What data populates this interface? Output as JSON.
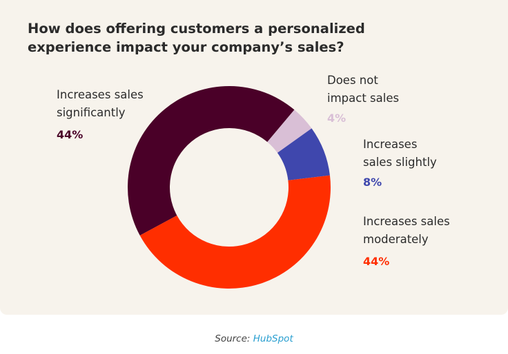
{
  "chart_data": {
    "type": "pie",
    "donut": true,
    "title": "How does offering customers a personalized experience impact your company’s sales?",
    "slices": [
      {
        "label": "Increases sales significantly",
        "value": 44,
        "display": "44%",
        "color": "#4a0028"
      },
      {
        "label": "Does not impact sales",
        "value": 4,
        "display": "4%",
        "color": "#d9bfd6"
      },
      {
        "label": "Increases sales slightly",
        "value": 8,
        "display": "8%",
        "color": "#3f47ad"
      },
      {
        "label": "Increases sales moderately",
        "value": 44,
        "display": "44%",
        "color": "#ff2e00"
      }
    ]
  },
  "source": {
    "prefix": "Source:",
    "link": "HubSpot"
  }
}
